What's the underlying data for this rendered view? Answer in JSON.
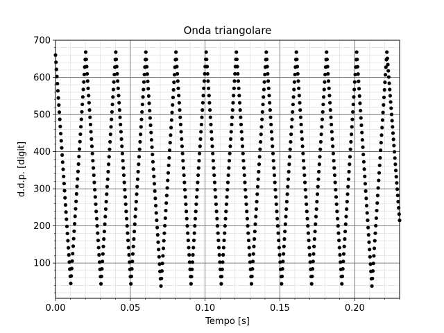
{
  "chart_data": {
    "type": "scatter",
    "title": "Onda triangolare",
    "xlabel": "Tempo [s]",
    "ylabel": "d.d.p. [digit]",
    "xlim": [
      0.0,
      0.23
    ],
    "ylim": [
      5,
      700
    ],
    "x_ticks": [
      "0.00",
      "0.05",
      "0.10",
      "0.15",
      "0.20"
    ],
    "y_ticks": [
      "100",
      "200",
      "300",
      "400",
      "500",
      "600",
      "700"
    ],
    "grid": {
      "major": true,
      "minor": true
    },
    "marker_color": "#000000",
    "series": [
      {
        "points": [
          [
            0.0,
            660
          ],
          [
            0.0102,
            45
          ],
          [
            0.0202,
            668
          ],
          [
            0.0304,
            44
          ],
          [
            0.0403,
            668
          ],
          [
            0.0504,
            44
          ],
          [
            0.0604,
            668
          ],
          [
            0.0705,
            38
          ],
          [
            0.0805,
            668
          ],
          [
            0.0906,
            44
          ],
          [
            0.1007,
            668
          ],
          [
            0.1108,
            44
          ],
          [
            0.1209,
            668
          ],
          [
            0.131,
            44
          ],
          [
            0.1409,
            668
          ],
          [
            0.1511,
            44
          ],
          [
            0.161,
            668
          ],
          [
            0.1712,
            44
          ],
          [
            0.1812,
            668
          ],
          [
            0.1914,
            44
          ],
          [
            0.2013,
            668
          ],
          [
            0.2115,
            38
          ],
          [
            0.2215,
            668
          ],
          [
            0.23,
            215
          ]
        ]
      }
    ]
  }
}
